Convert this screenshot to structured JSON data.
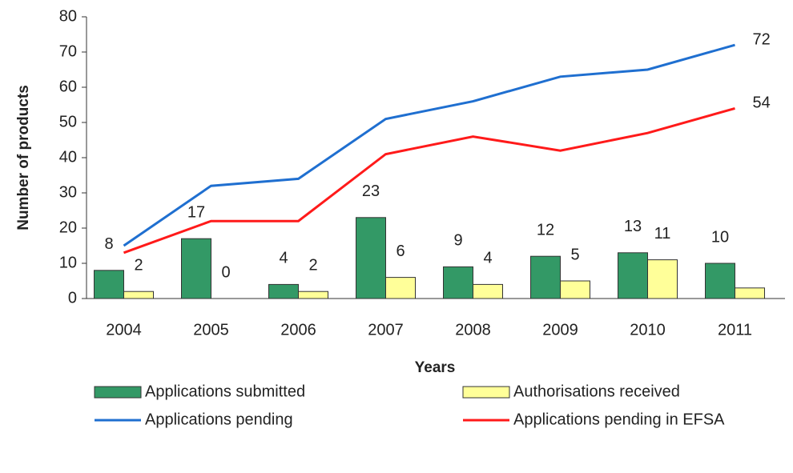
{
  "chart_data": {
    "type": "bar",
    "xlabel": "Years",
    "ylabel": "Number of products",
    "categories": [
      "2004",
      "2005",
      "2006",
      "2007",
      "2008",
      "2009",
      "2010",
      "2011"
    ],
    "ylim": [
      0,
      80
    ],
    "yticks": [
      0,
      10,
      20,
      30,
      40,
      50,
      60,
      70,
      80
    ],
    "series": [
      {
        "name": "Applications submitted",
        "type": "bar",
        "color": "#339966",
        "values": [
          8,
          17,
          4,
          23,
          9,
          12,
          13,
          10
        ]
      },
      {
        "name": "Authorisations received",
        "type": "bar",
        "color": "#ffff99",
        "values": [
          2,
          0,
          2,
          6,
          4,
          5,
          11,
          3
        ],
        "value_labels": [
          "2",
          "0",
          "2",
          "6",
          "4",
          "5",
          "11",
          null
        ]
      },
      {
        "name": "Applications pending",
        "type": "line",
        "color": "#1f6fd0",
        "values": [
          15,
          32,
          34,
          51,
          56,
          63,
          65,
          72
        ],
        "value_labels": [
          null,
          null,
          null,
          null,
          null,
          null,
          null,
          "72"
        ]
      },
      {
        "name": "Applications pending in EFSA",
        "type": "line",
        "color": "#ff1a1a",
        "values": [
          13,
          22,
          22,
          41,
          46,
          42,
          47,
          54
        ],
        "value_labels": [
          null,
          null,
          null,
          null,
          null,
          null,
          null,
          "54"
        ]
      }
    ]
  }
}
